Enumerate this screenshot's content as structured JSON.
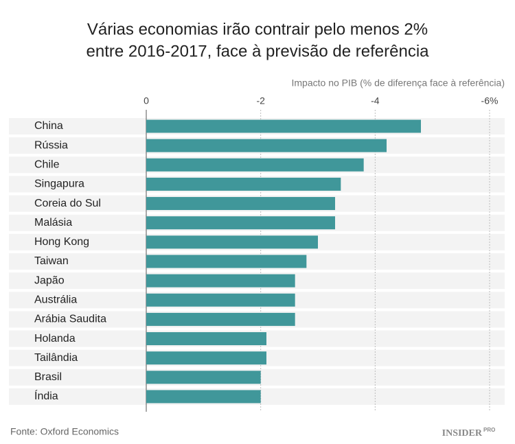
{
  "chart_data": {
    "type": "barh",
    "title": [
      "Várias economias irão contrair pelo menos 2%",
      "entre 2016-2017, face à previsão de referência"
    ],
    "x_label": "Impacto no PIB (% de diferença face à referência)",
    "categories": [
      "China",
      "Rússia",
      "Chile",
      "Singapura",
      "Coreia do Sul",
      "Malásia",
      "Hong Kong",
      "Taiwan",
      "Japão",
      "Austrália",
      "Arábia Saudita",
      "Holanda",
      "Tailândia",
      "Brasil",
      "Índia"
    ],
    "values": [
      -4.8,
      -4.2,
      -3.8,
      -3.4,
      -3.3,
      -3.3,
      -3.0,
      -2.8,
      -2.6,
      -2.6,
      -2.6,
      -2.1,
      -2.1,
      -2.0,
      -2.0
    ],
    "color": "#40979a",
    "xlim": [
      0,
      -6
    ],
    "xticks": [
      0,
      -2,
      -4,
      {
        "value": -6,
        "label": "-6%"
      }
    ],
    "grid": true,
    "source": "Fonte: Oxford Economics",
    "logo": [
      "INSIDER",
      "PRO"
    ]
  }
}
